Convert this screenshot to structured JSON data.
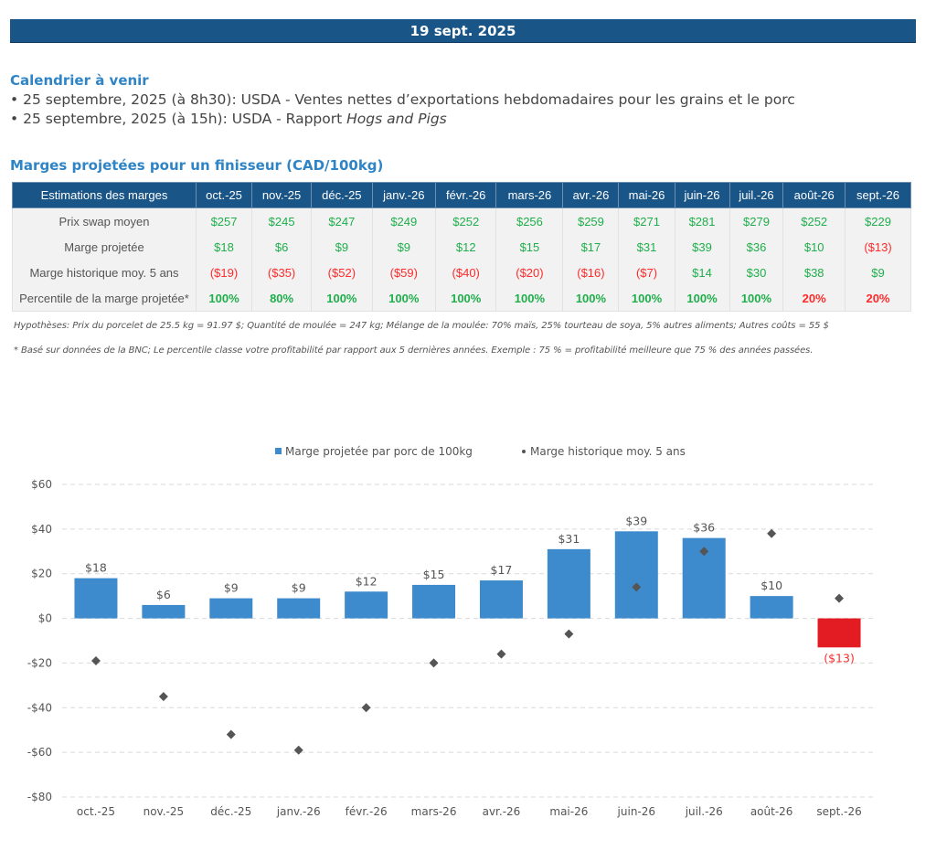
{
  "header": {
    "date": "19 sept. 2025"
  },
  "calendar": {
    "title": "Calendrier à venir",
    "items": [
      {
        "bullet": "•",
        "text": "25 septembre, 2025 (à 8h30): USDA - Ventes nettes d’exportations hebdomadaires pour les grains et le porc",
        "italic": ""
      },
      {
        "bullet": "•",
        "text": "25 septembre, 2025 (à 15h): USDA - Rapport ",
        "italic": "Hogs and Pigs"
      }
    ]
  },
  "margins_table": {
    "title": "Marges projetées pour un finisseur (CAD/100kg)",
    "header_label": "Estimations des marges",
    "columns": [
      "oct.-25",
      "nov.-25",
      "déc.-25",
      "janv.-26",
      "févr.-26",
      "mars-26",
      "avr.-26",
      "mai-26",
      "juin-26",
      "juil.-26",
      "août-26",
      "sept.-26"
    ],
    "rows": [
      {
        "label": "Prix swap moyen",
        "values": [
          "$257",
          "$245",
          "$247",
          "$249",
          "$252",
          "$256",
          "$259",
          "$271",
          "$281",
          "$279",
          "$252",
          "$229"
        ],
        "status": [
          "pos",
          "pos",
          "pos",
          "pos",
          "pos",
          "pos",
          "pos",
          "pos",
          "pos",
          "pos",
          "pos",
          "pos"
        ]
      },
      {
        "label": "Marge projetée",
        "values": [
          "$18",
          "$6",
          "$9",
          "$9",
          "$12",
          "$15",
          "$17",
          "$31",
          "$39",
          "$36",
          "$10",
          "($13)"
        ],
        "status": [
          "pos",
          "pos",
          "pos",
          "pos",
          "pos",
          "pos",
          "pos",
          "pos",
          "pos",
          "pos",
          "pos",
          "neg"
        ]
      },
      {
        "label": "Marge historique moy. 5 ans",
        "values": [
          "($19)",
          "($35)",
          "($52)",
          "($59)",
          "($40)",
          "($20)",
          "($16)",
          "($7)",
          "$14",
          "$30",
          "$38",
          "$9"
        ],
        "status": [
          "neg",
          "neg",
          "neg",
          "neg",
          "neg",
          "neg",
          "neg",
          "neg",
          "pos",
          "pos",
          "pos",
          "pos"
        ]
      },
      {
        "label": "Percentile de la marge projetée*",
        "values": [
          "100%",
          "80%",
          "100%",
          "100%",
          "100%",
          "100%",
          "100%",
          "100%",
          "100%",
          "100%",
          "20%",
          "20%"
        ],
        "status": [
          "pos",
          "pos",
          "pos",
          "pos",
          "pos",
          "pos",
          "pos",
          "pos",
          "pos",
          "pos",
          "neg",
          "neg"
        ]
      }
    ],
    "notes": [
      "Hypothèses: Prix du porcelet de 25.5 kg = 91.97 $; Quantité de moulée = 247 kg; Mélange de la moulée: 70% maïs, 25% tourteau de soya, 5% autres aliments; Autres coûts = 55 $",
      "* Basé sur données de la BNC; Le percentile classe votre profitabilité par rapport aux 5 dernières années. Exemple : 75 % = profitabilité meilleure que 75 % des années passées."
    ]
  },
  "colors": {
    "banner": "#1a5588",
    "title_blue": "#2f84c6",
    "positive": "#1fae4b",
    "negative": "#ff2a2a",
    "bar_positive": "#3d8bcd",
    "bar_negative": "#e31b23",
    "marker": "#555555"
  },
  "chart_data": {
    "type": "bar",
    "title": "",
    "xlabel": "",
    "ylabel": "",
    "categories": [
      "oct.-25",
      "nov.-25",
      "déc.-25",
      "janv.-26",
      "févr.-26",
      "mars-26",
      "avr.-26",
      "mai-26",
      "juin-26",
      "juil.-26",
      "août-26",
      "sept.-26"
    ],
    "series": [
      {
        "name": "Marge projetée par porc de 100kg",
        "kind": "bar",
        "values": [
          18,
          6,
          9,
          9,
          12,
          15,
          17,
          31,
          39,
          36,
          10,
          -13
        ],
        "labels": [
          "$18",
          "$6",
          "$9",
          "$9",
          "$12",
          "$15",
          "$17",
          "$31",
          "$39",
          "$36",
          "$10",
          "($13)"
        ]
      },
      {
        "name": "Marge historique moy. 5 ans",
        "kind": "scatter-diamond",
        "values": [
          -19,
          -35,
          -52,
          -59,
          -40,
          -20,
          -16,
          -7,
          14,
          30,
          38,
          9
        ]
      }
    ],
    "ylim": [
      -80,
      60
    ],
    "yticks": [
      60,
      40,
      20,
      0,
      -20,
      -40,
      -60,
      -80
    ],
    "ytick_labels": [
      "$60",
      "$40",
      "$20",
      "$0",
      "-$20",
      "-$40",
      "-$60",
      "-$80"
    ],
    "grid": true,
    "legend": "top-center"
  }
}
